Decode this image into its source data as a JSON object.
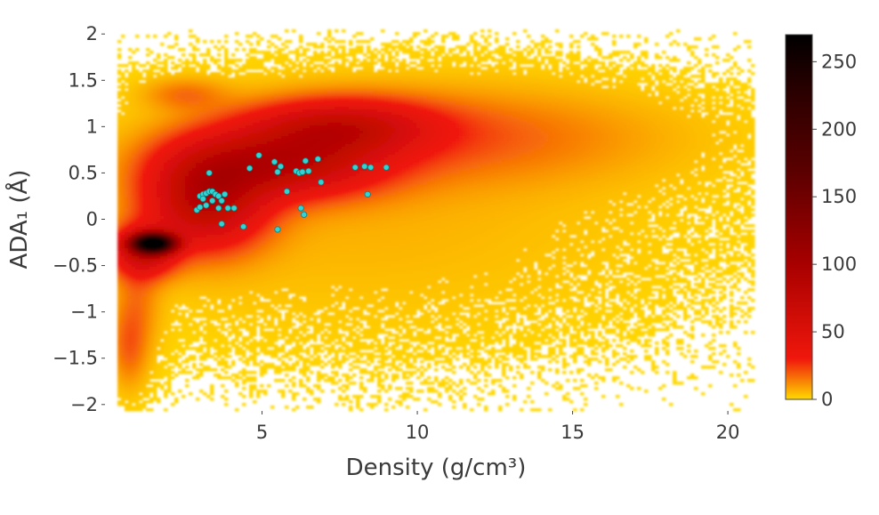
{
  "chart_data": {
    "type": "heatmap",
    "title": "",
    "xlabel": "Density (g/cm³)",
    "ylabel": "ADA₁ (Å)",
    "xlim": [
      0,
      21.2
    ],
    "ylim": [
      -2.05,
      2.05
    ],
    "x_ticks": [
      5,
      10,
      15,
      20
    ],
    "x_tick_labels": [
      "5",
      "10",
      "15",
      "20"
    ],
    "y_ticks": [
      2,
      1.5,
      1,
      0.5,
      0,
      -0.5,
      -1,
      -1.5,
      -2
    ],
    "y_tick_labels": [
      "2",
      "1.5",
      "1",
      "0.5",
      "0",
      "−0.5",
      "−1",
      "−1.5",
      "−2"
    ],
    "grid": false,
    "colorbar": {
      "range": [
        0,
        270
      ],
      "ticks": [
        0,
        50,
        100,
        150,
        200,
        250
      ],
      "tick_labels": [
        "0",
        "50",
        "100",
        "150",
        "200",
        "250"
      ],
      "colors": [
        {
          "value": 0,
          "color": "#ffd900"
        },
        {
          "value": 30,
          "color": "#f0170c"
        },
        {
          "value": 100,
          "color": "#a80000"
        },
        {
          "value": 170,
          "color": "#5a0000"
        },
        {
          "value": 230,
          "color": "#280000"
        },
        {
          "value": 270,
          "color": "#000000"
        }
      ]
    },
    "density_regions": [
      {
        "x": 1.5,
        "y": -0.26,
        "sx": 0.45,
        "sy": 0.07,
        "level": 270
      },
      {
        "x": 1.2,
        "y": -0.35,
        "sx": 0.7,
        "sy": 0.18,
        "level": 60
      },
      {
        "x": 3.2,
        "y": 0.2,
        "sx": 1.3,
        "sy": 0.35,
        "level": 75
      },
      {
        "x": 5.5,
        "y": 0.6,
        "sx": 2.2,
        "sy": 0.25,
        "level": 70
      },
      {
        "x": 7.5,
        "y": 1.0,
        "sx": 2.0,
        "sy": 0.2,
        "level": 55
      },
      {
        "x": 11,
        "y": 0.9,
        "sx": 4.5,
        "sy": 0.35,
        "level": 18
      },
      {
        "x": 0.7,
        "y": -1.4,
        "sx": 0.4,
        "sy": 0.3,
        "level": 15
      },
      {
        "x": 1.0,
        "y": -0.9,
        "sx": 0.5,
        "sy": 0.4,
        "level": 12
      },
      {
        "x": 8,
        "y": 0.0,
        "sx": 6.5,
        "sy": 0.8,
        "level": 6
      },
      {
        "x": 2.5,
        "y": 1.35,
        "sx": 0.9,
        "sy": 0.12,
        "level": 14
      }
    ],
    "scatter_series": {
      "marker_color": "#33d3d3",
      "marker_edge": "#0e7f7f",
      "x": [
        2.9,
        3.0,
        3.1,
        3.2,
        3.3,
        3.4,
        3.5,
        3.6,
        3.7,
        3.8,
        3.0,
        3.2,
        3.4,
        3.6,
        3.9,
        4.1,
        4.4,
        3.7,
        3.3,
        4.6,
        4.9,
        5.4,
        5.5,
        5.6,
        5.8,
        6.1,
        6.2,
        6.3,
        6.4,
        6.5,
        6.8,
        6.9,
        6.25,
        6.35,
        5.5,
        8.0,
        8.4,
        8.5,
        9.0,
        8.3,
        3.1
      ],
      "y": [
        0.1,
        0.25,
        0.27,
        0.28,
        0.3,
        0.3,
        0.27,
        0.25,
        0.2,
        0.27,
        0.13,
        0.15,
        0.2,
        0.12,
        0.12,
        0.12,
        -0.08,
        -0.05,
        0.5,
        0.55,
        0.69,
        0.62,
        0.51,
        0.57,
        0.3,
        0.52,
        0.5,
        0.51,
        0.63,
        0.52,
        0.65,
        0.4,
        0.12,
        0.05,
        -0.11,
        0.56,
        0.27,
        0.56,
        0.56,
        0.57,
        0.22
      ]
    }
  }
}
